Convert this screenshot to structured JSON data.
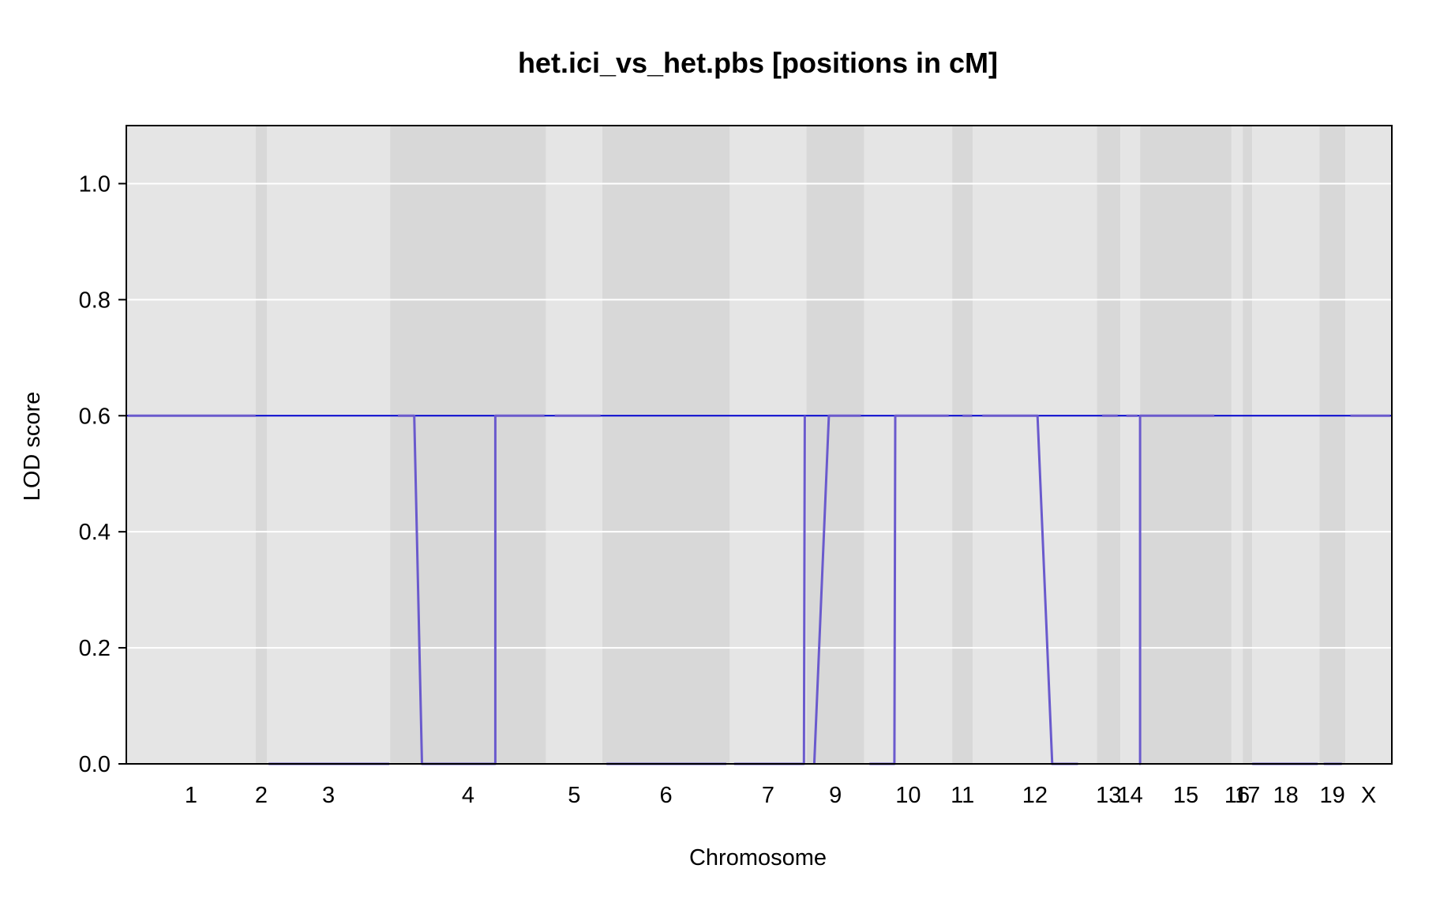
{
  "chart_data": {
    "type": "line",
    "title": "het.ici_vs_het.pbs [positions in cM]",
    "xlabel": "Chromosome",
    "ylabel": "LOD score",
    "ylim": [
      0,
      1.1
    ],
    "yticks": [
      "0.0",
      "0.2",
      "0.4",
      "0.6",
      "0.8",
      "1.0"
    ],
    "grid": true,
    "colors": {
      "panel_light": "#e5e5e5",
      "panel_dark": "#d8d8d8",
      "grid": "#ffffff",
      "lod_line": "#6a5acd",
      "threshold_line": "#0000cc",
      "frame": "#000000"
    },
    "chromosomes": [
      {
        "label": "1",
        "start": 0,
        "end": 150
      },
      {
        "label": "2",
        "start": 150,
        "end": 163
      },
      {
        "label": "3",
        "start": 163,
        "end": 306
      },
      {
        "label": "4",
        "start": 306,
        "end": 487
      },
      {
        "label": "5",
        "start": 487,
        "end": 552
      },
      {
        "label": "6",
        "start": 552,
        "end": 700
      },
      {
        "label": "7",
        "start": 700,
        "end": 789
      },
      {
        "label": "9",
        "start": 789,
        "end": 856
      },
      {
        "label": "10",
        "start": 856,
        "end": 958
      },
      {
        "label": "11",
        "start": 958,
        "end": 982
      },
      {
        "label": "12",
        "start": 982,
        "end": 1126
      },
      {
        "label": "13",
        "start": 1126,
        "end": 1153
      },
      {
        "label": "14",
        "start": 1153,
        "end": 1176
      },
      {
        "label": "15",
        "start": 1176,
        "end": 1282
      },
      {
        "label": "16",
        "start": 1282,
        "end": 1295
      },
      {
        "label": "17",
        "start": 1295,
        "end": 1306
      },
      {
        "label": "18",
        "start": 1306,
        "end": 1384
      },
      {
        "label": "19",
        "start": 1384,
        "end": 1414
      },
      {
        "label": "X",
        "start": 1414,
        "end": 1468
      }
    ],
    "xlim": [
      0,
      1468
    ],
    "threshold": {
      "y": 0.6
    },
    "series": [
      {
        "segments": [
          {
            "x": [
              2,
              150
            ],
            "y": [
              0.6,
              0.6
            ]
          },
          {
            "x": [
              165,
              305
            ],
            "y": [
              0.0,
              0.0
            ]
          },
          {
            "x": [
              315,
              334,
              343,
              428,
              428,
              485
            ],
            "y": [
              0.6,
              0.6,
              0.0,
              0.0,
              0.6,
              0.6
            ]
          },
          {
            "x": [
              497,
              550
            ],
            "y": [
              0.6,
              0.6
            ]
          },
          {
            "x": [
              557,
              696
            ],
            "y": [
              0.0,
              0.0
            ]
          },
          {
            "x": [
              705,
              786,
              787
            ],
            "y": [
              0.0,
              0.0,
              0.6
            ]
          },
          {
            "x": [
              798,
              815,
              852
            ],
            "y": [
              0.0,
              0.6,
              0.6
            ]
          },
          {
            "x": [
              862,
              891,
              892,
              954
            ],
            "y": [
              0.0,
              0.0,
              0.6,
              0.6
            ]
          },
          {
            "x": [
              970,
              981
            ],
            "y": [
              0.6,
              0.6
            ]
          },
          {
            "x": [
              993,
              1057,
              1074,
              1104
            ],
            "y": [
              0.6,
              0.6,
              0.0,
              0.0
            ]
          },
          {
            "x": [
              1132,
              1150
            ],
            "y": [
              0.6,
              0.6
            ]
          },
          {
            "x": [
              1160,
              1173
            ],
            "y": [
              0.6,
              0.6
            ]
          },
          {
            "x": [
              1175,
              1176,
              1176,
              1262
            ],
            "y": [
              0.0,
              0.0,
              0.6,
              0.6
            ]
          },
          {
            "x": [
              1306,
              1382
            ],
            "y": [
              0.0,
              0.0
            ]
          },
          {
            "x": [
              1389,
              1410
            ],
            "y": [
              0.0,
              0.0
            ]
          },
          {
            "x": [
              1420,
              1466
            ],
            "y": [
              0.6,
              0.6
            ]
          }
        ]
      }
    ]
  }
}
